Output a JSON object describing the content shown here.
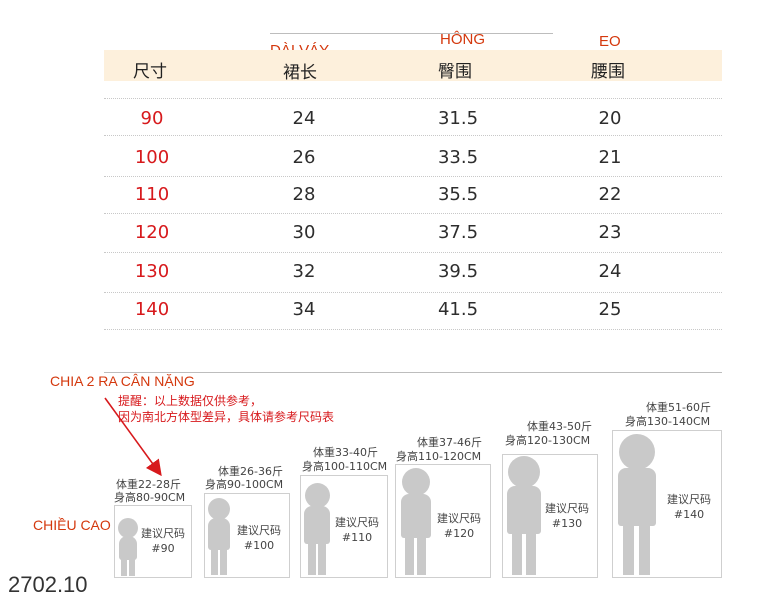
{
  "table": {
    "headers": {
      "size": "尺寸",
      "length": "裙长",
      "hip": "臀围",
      "waist": "腰围"
    },
    "rows": [
      {
        "size": "90",
        "length": "24",
        "hip": "31.5",
        "waist": "20"
      },
      {
        "size": "100",
        "length": "26",
        "hip": "33.5",
        "waist": "21"
      },
      {
        "size": "110",
        "length": "28",
        "hip": "35.5",
        "waist": "22"
      },
      {
        "size": "120",
        "length": "30",
        "hip": "37.5",
        "waist": "23"
      },
      {
        "size": "130",
        "length": "32",
        "hip": "39.5",
        "waist": "24"
      },
      {
        "size": "140",
        "length": "34",
        "hip": "41.5",
        "waist": "25"
      }
    ]
  },
  "annotations": {
    "length_vn": "DÀI VÁY",
    "hip_vn": "HÔNG",
    "waist_vn": "EO",
    "weight_note_vn": "CHIA 2 RA CÂN NẶNG",
    "height_vn": "CHIỀU CAO"
  },
  "note": {
    "line1": "提醒：以上数据仅供参考，",
    "line2": "因为南北方体型差异，具体请参考尺码表"
  },
  "size_guide": [
    {
      "weight": "体重22-28斤",
      "height": "身高80-90CM",
      "label": "建议尺码",
      "size": "#90"
    },
    {
      "weight": "体重26-36斤",
      "height": "身高90-100CM",
      "label": "建议尺码",
      "size": "#100"
    },
    {
      "weight": "体重33-40斤",
      "height": "身高100-110CM",
      "label": "建议尺码",
      "size": "#110"
    },
    {
      "weight": "体重37-46斤",
      "height": "身高110-120CM",
      "label": "建议尺码",
      "size": "#120"
    },
    {
      "weight": "体重43-50斤",
      "height": "身高120-130CM",
      "label": "建议尺码",
      "size": "#130"
    },
    {
      "weight": "体重51-60斤",
      "height": "身高130-140CM",
      "label": "建议尺码",
      "size": "#140"
    }
  ],
  "footer": {
    "code": "2702.10"
  },
  "colors": {
    "header_band": "#fdf0dc",
    "size_text": "#d7191c",
    "annotation": "#d4380d",
    "silhouette": "#c9c9c9"
  }
}
